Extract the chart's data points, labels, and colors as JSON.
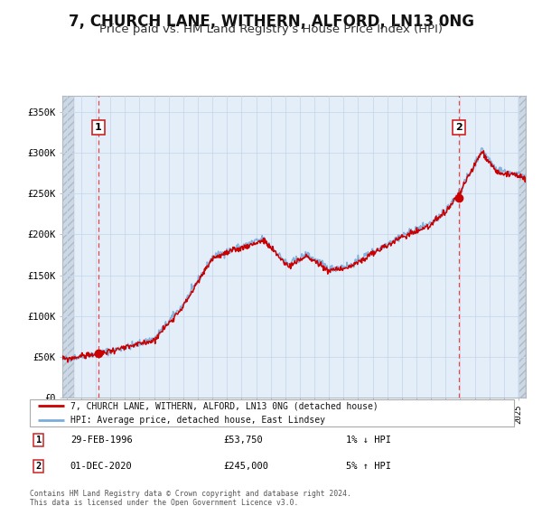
{
  "title": "7, CHURCH LANE, WITHERN, ALFORD, LN13 0NG",
  "subtitle": "Price paid vs. HM Land Registry's House Price Index (HPI)",
  "title_fontsize": 12,
  "subtitle_fontsize": 9.5,
  "xlim": [
    1993.7,
    2025.5
  ],
  "ylim": [
    0,
    370000
  ],
  "yticks": [
    0,
    50000,
    100000,
    150000,
    200000,
    250000,
    300000,
    350000
  ],
  "ytick_labels": [
    "£0",
    "£50K",
    "£100K",
    "£150K",
    "£200K",
    "£250K",
    "£300K",
    "£350K"
  ],
  "grid_color": "#c8d8eb",
  "plot_bg_color": "#e4eef8",
  "hatch_bg_color": "#cdd8e2",
  "line1_color": "#cc0000",
  "line2_color": "#7aacdc",
  "marker_color": "#cc0000",
  "sale1_year": 1996.16,
  "sale1_price": 53750,
  "sale2_year": 2020.92,
  "sale2_price": 245000,
  "legend1": "7, CHURCH LANE, WITHERN, ALFORD, LN13 0NG (detached house)",
  "legend2": "HPI: Average price, detached house, East Lindsey",
  "note1_label": "1",
  "note1_date": "29-FEB-1996",
  "note1_price": "£53,750",
  "note1_hpi": "1% ↓ HPI",
  "note2_label": "2",
  "note2_date": "01-DEC-2020",
  "note2_price": "£245,000",
  "note2_hpi": "5% ↑ HPI",
  "footnote": "Contains HM Land Registry data © Crown copyright and database right 2024.\nThis data is licensed under the Open Government Licence v3.0."
}
